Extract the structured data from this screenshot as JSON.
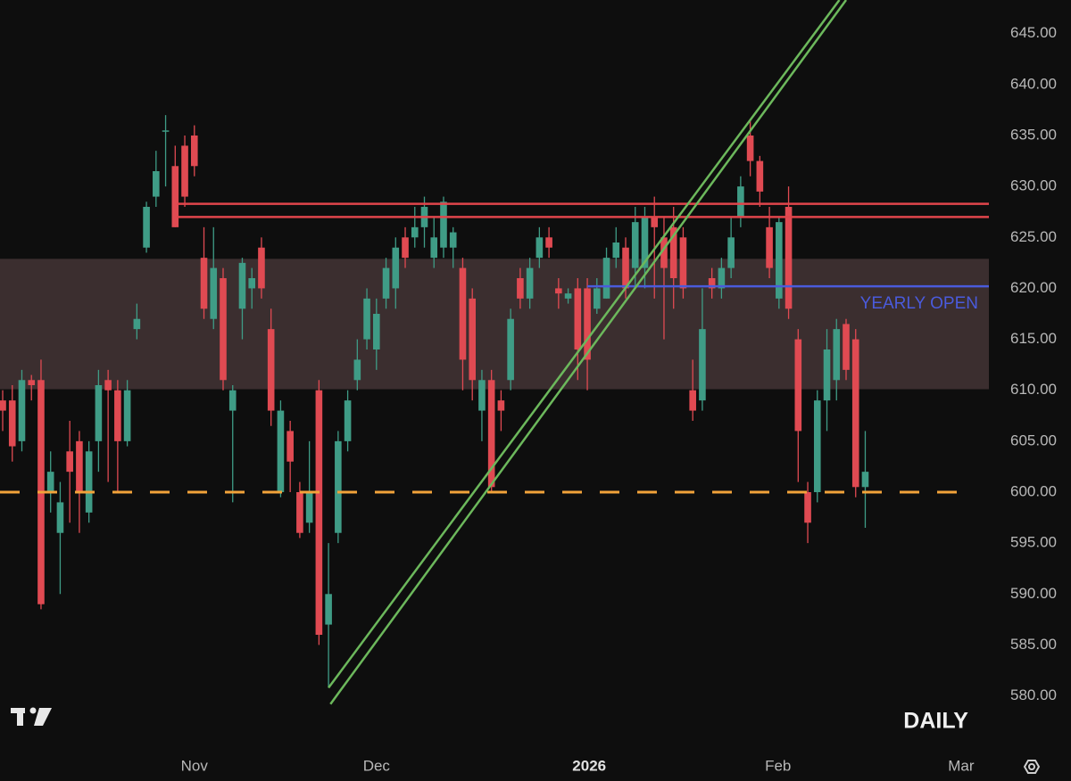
{
  "chart_data": {
    "type": "candlestick",
    "up_color": "#3f9c86",
    "down_color": "#e04a52",
    "open": [
      609,
      609,
      605,
      611,
      611,
      600,
      596,
      604,
      605,
      598,
      605,
      611,
      610,
      605,
      616,
      624,
      629,
      635.5,
      632,
      634,
      635,
      623,
      617,
      621,
      608,
      618,
      620,
      624,
      616,
      600,
      606,
      600,
      597,
      610,
      587,
      596,
      605,
      611,
      615,
      614,
      619,
      620,
      625,
      625,
      626,
      623,
      624,
      624,
      622,
      619,
      608,
      611,
      609,
      611,
      621,
      619,
      623,
      625,
      620,
      619,
      620,
      620,
      618,
      619,
      623,
      624,
      622,
      622,
      627,
      625,
      626,
      625,
      610,
      609,
      621,
      620,
      622,
      627,
      635,
      632.5,
      626,
      619,
      628,
      615,
      600,
      600,
      609,
      611,
      616.5,
      615,
      600.5
    ],
    "high": [
      610,
      610.5,
      612,
      611.5,
      613,
      604,
      601,
      607,
      606,
      605,
      612,
      612,
      611,
      611,
      618.5,
      628.5,
      633.5,
      637,
      634,
      635,
      636,
      626,
      626,
      622,
      610.5,
      623,
      622,
      625,
      618,
      609,
      607,
      601,
      605,
      611,
      595,
      606,
      610,
      615,
      620,
      619,
      623,
      625,
      626,
      628,
      629,
      627,
      629,
      626,
      623,
      620,
      612,
      612,
      610,
      618,
      622,
      623,
      626,
      626,
      621,
      620,
      621,
      621,
      621,
      624,
      626,
      625,
      628,
      628,
      629,
      627,
      628,
      626,
      613,
      620,
      622,
      623,
      627,
      631,
      636.5,
      633,
      628,
      627,
      630,
      616,
      601,
      610,
      616,
      617,
      617,
      616,
      606
    ],
    "low": [
      606,
      603,
      604,
      609,
      588.5,
      598,
      590,
      597,
      596,
      597,
      602,
      601,
      600,
      604.5,
      615,
      623.5,
      628,
      630,
      626,
      628,
      631,
      617,
      616,
      610,
      599,
      615,
      618,
      619,
      606.5,
      599.5,
      600,
      595.5,
      596,
      585,
      580.8,
      595,
      604,
      610,
      614,
      612,
      618,
      618,
      622,
      624,
      624,
      622,
      623,
      622,
      610,
      609,
      605,
      600,
      606,
      610,
      618,
      618,
      622,
      623,
      618,
      618.5,
      611,
      610,
      617.5,
      619,
      622,
      619,
      620,
      620,
      619,
      615,
      618,
      619,
      607,
      608,
      619,
      619,
      621,
      626,
      631,
      628,
      621,
      618,
      617,
      601,
      595,
      599,
      606,
      609,
      611,
      599.5,
      596.5
    ],
    "close": [
      608,
      604.5,
      611,
      610.5,
      589,
      602,
      599,
      602,
      600,
      604,
      610.5,
      610,
      605,
      610,
      617,
      628,
      631.5,
      635.5,
      626,
      629,
      632,
      618,
      622,
      611,
      610,
      622.5,
      621,
      620,
      608,
      608,
      603,
      596,
      600,
      586,
      590,
      605,
      609,
      613,
      619,
      617.5,
      622,
      624,
      623,
      626,
      628,
      625,
      628.5,
      625.5,
      613,
      611,
      611,
      600.5,
      608,
      617,
      619,
      622,
      625,
      624,
      619.5,
      619.5,
      614,
      613,
      620,
      623,
      624.5,
      620,
      626.5,
      627,
      626,
      622,
      621,
      620,
      608,
      616,
      620,
      622,
      625,
      630,
      632.5,
      629.5,
      622,
      626.5,
      618,
      606,
      597,
      609,
      614,
      616,
      612,
      600.5,
      602
    ],
    "xlim": [
      -0.28,
      102.9
    ],
    "xticks": [
      {
        "value": 20,
        "label": "Nov"
      },
      {
        "value": 39,
        "label": "Dec"
      },
      {
        "value": 61.2,
        "label": "2026"
      },
      {
        "value": 80.9,
        "label": "Feb"
      },
      {
        "value": 100,
        "label": "Mar"
      }
    ],
    "ylim": [
      574.8,
      648.3
    ],
    "yticks": [
      {
        "value": 580,
        "label": "580.00"
      },
      {
        "value": 585,
        "label": "585.00"
      },
      {
        "value": 590,
        "label": "590.00"
      },
      {
        "value": 595,
        "label": "595.00"
      },
      {
        "value": 600,
        "label": "600.00"
      },
      {
        "value": 605,
        "label": "605.00"
      },
      {
        "value": 610,
        "label": "610.00"
      },
      {
        "value": 615,
        "label": "615.00"
      },
      {
        "value": 620,
        "label": "620.00"
      },
      {
        "value": 625,
        "label": "625.00"
      },
      {
        "value": 630,
        "label": "630.00"
      },
      {
        "value": 635,
        "label": "635.00"
      },
      {
        "value": 640,
        "label": "640.00"
      },
      {
        "value": 645,
        "label": "645.00"
      }
    ],
    "zones": [
      {
        "from": 610.1,
        "to": 622.9,
        "color": "#3b2e2f"
      }
    ],
    "hlines": [
      {
        "value": 628.3,
        "start": 18.2,
        "end": 102.9,
        "color": "#e0454b"
      },
      {
        "value": 627,
        "start": 18.2,
        "end": 102.9,
        "color": "#e0454b"
      },
      {
        "value": 620.2,
        "start": 61,
        "end": 102.9,
        "color": "#4a5bdc",
        "label": "YEARLY OPEN"
      },
      {
        "value": 600,
        "start": -0.28,
        "end": 101.2,
        "color": "#f2a33a",
        "dashed": true
      }
    ],
    "trendlines": [
      {
        "x": [
          34,
          87.3
        ],
        "y": [
          580.8,
          648.3
        ],
        "color": "#6cb85c"
      },
      {
        "x": [
          34.2,
          88
        ],
        "y": [
          579.2,
          648.3
        ],
        "color": "#6cb85c"
      }
    ],
    "timeframe": "DAILY"
  }
}
